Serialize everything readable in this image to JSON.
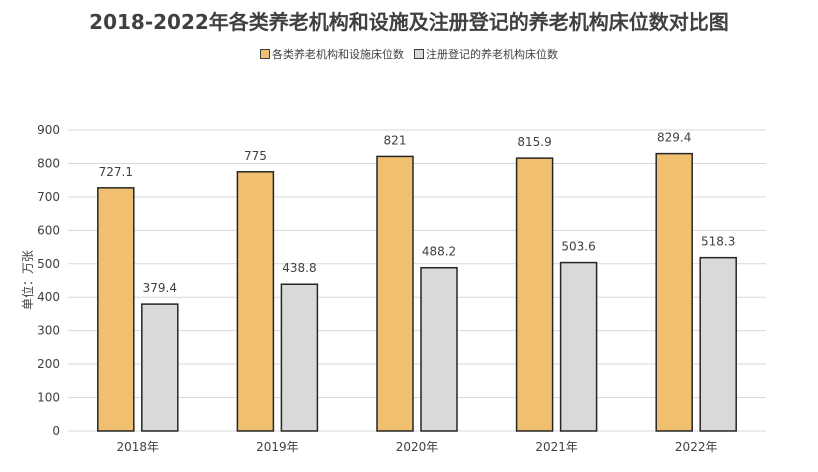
{
  "chart_data": {
    "type": "bar",
    "title": "2018-2022年各类养老机构和设施及注册登记的养老机构床位数对比图",
    "ylabel": "单位：万张",
    "xlabel": "",
    "categories": [
      "2018年",
      "2019年",
      "2020年",
      "2021年",
      "2022年"
    ],
    "series": [
      {
        "name": "各类养老机构和设施床位数",
        "values": [
          727.1,
          775,
          821,
          815.9,
          829.4
        ],
        "color": "#f0c070"
      },
      {
        "name": "注册登记的养老机构床位数",
        "values": [
          379.4,
          438.8,
          488.2,
          503.6,
          518.3
        ],
        "color": "#d9d9d9"
      }
    ],
    "ylim": [
      0,
      900
    ],
    "yticks": [
      0,
      100,
      200,
      300,
      400,
      500,
      600,
      700,
      800,
      900
    ],
    "grid": true,
    "legend_position": "top-center",
    "bar_border_color": "#262626"
  }
}
